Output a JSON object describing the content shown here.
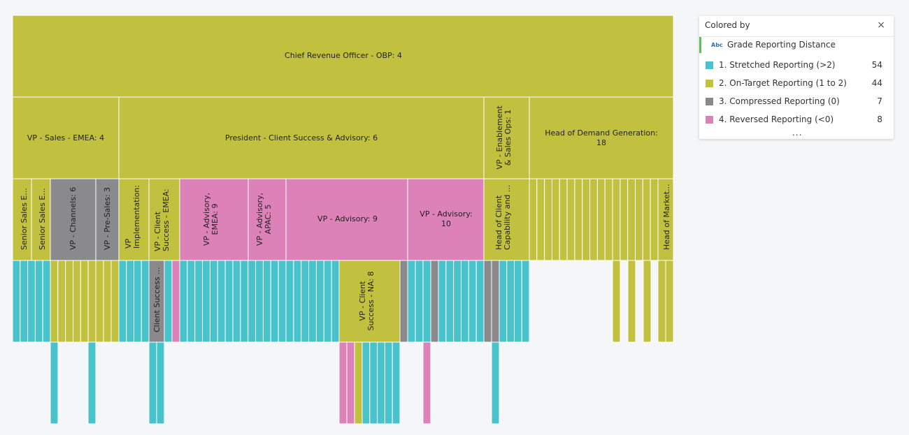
{
  "colors": {
    "stretched": "#48c3cc",
    "on_target": "#c2c13f",
    "compressed": "#8a8a8c",
    "reversed": "#dc82b8"
  },
  "legend": {
    "title": "Colored by",
    "close_symbol": "×",
    "field_icon": "Abc",
    "field_name": "Grade Reporting Distance",
    "items": [
      {
        "label": "1. Stretched Reporting (>2)",
        "count": "54",
        "color": "#48c3cc"
      },
      {
        "label": "2. On-Target Reporting (1 to 2)",
        "count": "44",
        "color": "#c2c13f"
      },
      {
        "label": "3. Compressed Reporting (0)",
        "count": "7",
        "color": "#8a8a8c"
      },
      {
        "label": "4. Reversed Reporting (<0)",
        "count": "8",
        "color": "#dc82b8"
      }
    ],
    "more": "...",
    "menu_icon": "kebab-menu-icon"
  },
  "chart_data": {
    "type": "hierarchy",
    "colored_by": "Grade Reporting Distance",
    "categories": [
      "1. Stretched Reporting (>2)",
      "2. On-Target Reporting (1 to 2)",
      "3. Compressed Reporting (0)",
      "4. Reversed Reporting (<0)"
    ],
    "category_counts": [
      54,
      44,
      7,
      8
    ],
    "root": {
      "label": "Chief Revenue Officer - OBP: 4",
      "category": "on_target"
    },
    "level_1": [
      {
        "label": "VP - Sales - EMEA: 4",
        "category": "on_target"
      },
      {
        "label": "President -  Client Success & Advisory: 6",
        "category": "on_target"
      },
      {
        "label": "VP - Enablement & Sales Ops: 1",
        "category": "on_target"
      },
      {
        "label": "Head of Demand Generation: 18",
        "category": "on_target"
      }
    ],
    "level_2_labels": [
      "Senior Sales E...",
      "Senior Sales E...",
      "VP - Channels: 6",
      "VP - Pre-Sales: 3",
      "VP Implementation:",
      "VP - Client Success - EMEA:",
      "VP - Advisory, EMEA: 9",
      "VP - Advisory, APAC: 5",
      "VP - Advisory: 9",
      "VP - Advisory: 10",
      "Head of Client Capability and ...",
      "Head of Market..."
    ],
    "level_3_labels": [
      "Client Success ...",
      "VP - Client Success - NA: 8"
    ]
  }
}
